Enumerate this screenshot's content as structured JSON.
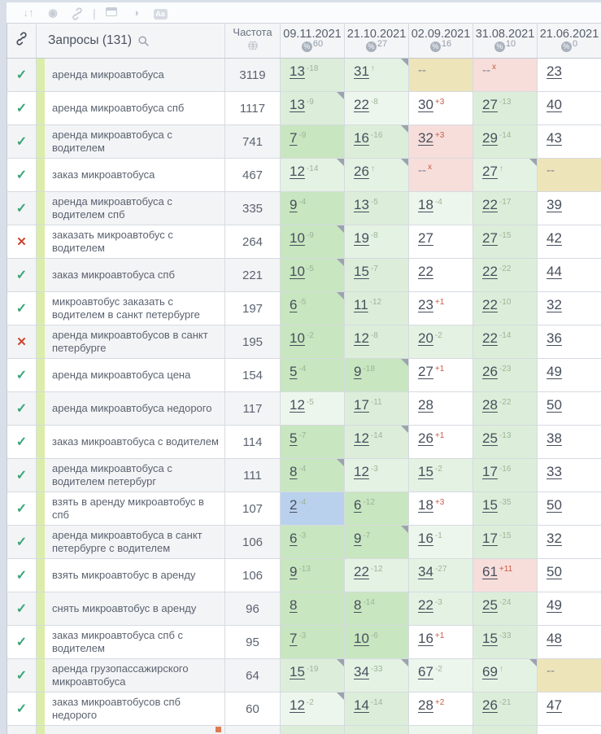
{
  "toolbar": {
    "icons": [
      "sort-icon",
      "record-icon",
      "link-icon",
      "divider",
      "window-icon",
      "contrast-icon",
      "font-case-icon"
    ]
  },
  "header": {
    "queries_label": "Запросы (131)",
    "frequency_label": "Частота",
    "dates": [
      {
        "date": "09.11.2021",
        "percent": "60"
      },
      {
        "date": "21.10.2021",
        "percent": "27"
      },
      {
        "date": "02.09.2021",
        "percent": "16"
      },
      {
        "date": "31.08.2021",
        "percent": "10"
      },
      {
        "date": "21.06.2021",
        "percent": "0"
      }
    ]
  },
  "colors": {
    "check_green": "#3aa678",
    "cross_red": "#cd4632",
    "query_strip": "#dcedaa",
    "change_up_green": "#9cb49a",
    "change_down_red": "#c75b42",
    "cell_top3_blue": "#b9d1ed",
    "cell_good_green": "#c8e6bf",
    "cell_dropped_pink": "#f7dedb",
    "cell_nodata_tan": "#eee4b9"
  },
  "rows": [
    {
      "status": "check",
      "query": "аренда микроавтобуса",
      "freq": "3119",
      "cells": [
        {
          "pos": "13",
          "chg": "-18",
          "bg": "g2"
        },
        {
          "pos": "31",
          "chg": "↑",
          "bg": "g3",
          "tri": true
        },
        {
          "pos": "--",
          "bg": "tan"
        },
        {
          "pos": "--",
          "chg": "x",
          "bg": "pink"
        },
        {
          "pos": "23",
          "bg": "white"
        }
      ]
    },
    {
      "status": "check",
      "query": "аренда микроавтобуса спб",
      "freq": "1117",
      "cells": [
        {
          "pos": "13",
          "chg": "-9",
          "bg": "g2",
          "tri": true
        },
        {
          "pos": "22",
          "chg": "-8",
          "bg": "g4"
        },
        {
          "pos": "30",
          "chg": "+3",
          "bg": "white"
        },
        {
          "pos": "27",
          "chg": "-13",
          "bg": "g2"
        },
        {
          "pos": "40",
          "bg": "white"
        }
      ]
    },
    {
      "status": "check",
      "query": "аренда микроавтобуса с водителем",
      "freq": "741",
      "cells": [
        {
          "pos": "7",
          "chg": "-9",
          "bg": "g1"
        },
        {
          "pos": "16",
          "chg": "-16",
          "bg": "g2",
          "tri": true
        },
        {
          "pos": "32",
          "chg": "+3",
          "bg": "pink"
        },
        {
          "pos": "29",
          "chg": "-14",
          "bg": "g2"
        },
        {
          "pos": "43",
          "bg": "white"
        }
      ]
    },
    {
      "status": "check",
      "query": "заказ микроавтобуса",
      "freq": "467",
      "cells": [
        {
          "pos": "12",
          "chg": "-14",
          "bg": "g3",
          "tri": true
        },
        {
          "pos": "26",
          "chg": "↑",
          "bg": "g3",
          "tri": true
        },
        {
          "pos": "--",
          "chg": "x",
          "bg": "pink"
        },
        {
          "pos": "27",
          "chg": "↑",
          "bg": "g3",
          "tri": true
        },
        {
          "pos": "--",
          "bg": "tan"
        }
      ]
    },
    {
      "status": "check",
      "query": "аренда микроавтобуса с водителем спб",
      "freq": "335",
      "cells": [
        {
          "pos": "9",
          "chg": "-4",
          "bg": "g1"
        },
        {
          "pos": "13",
          "chg": "-5",
          "bg": "g2"
        },
        {
          "pos": "18",
          "chg": "-4",
          "bg": "g4"
        },
        {
          "pos": "22",
          "chg": "-17",
          "bg": "g2"
        },
        {
          "pos": "39",
          "bg": "white"
        }
      ]
    },
    {
      "status": "cross",
      "query": "заказать микроавтобус с водителем",
      "freq": "264",
      "cells": [
        {
          "pos": "10",
          "chg": "-9",
          "bg": "g1",
          "tri": true
        },
        {
          "pos": "19",
          "chg": "-8",
          "bg": "g3"
        },
        {
          "pos": "27",
          "bg": "white"
        },
        {
          "pos": "27",
          "chg": "-15",
          "bg": "g2"
        },
        {
          "pos": "42",
          "bg": "white"
        }
      ]
    },
    {
      "status": "check",
      "query": "заказ микроавтобуса спб",
      "freq": "221",
      "cells": [
        {
          "pos": "10",
          "chg": "-5",
          "bg": "g1",
          "tri": true
        },
        {
          "pos": "15",
          "chg": "-7",
          "bg": "g2"
        },
        {
          "pos": "22",
          "bg": "white"
        },
        {
          "pos": "22",
          "chg": "-22",
          "bg": "g2"
        },
        {
          "pos": "44",
          "bg": "white"
        }
      ]
    },
    {
      "status": "check",
      "query": "микроавтобус заказать с водителем в санкт петербурге",
      "freq": "197",
      "cells": [
        {
          "pos": "6",
          "chg": "-5",
          "bg": "g1",
          "tri": true
        },
        {
          "pos": "11",
          "chg": "-12",
          "bg": "g2"
        },
        {
          "pos": "23",
          "chg": "+1",
          "bg": "white"
        },
        {
          "pos": "22",
          "chg": "-10",
          "bg": "g2"
        },
        {
          "pos": "32",
          "bg": "white"
        }
      ]
    },
    {
      "status": "cross",
      "query": "аренда микроавтобусов в санкт петербурге",
      "freq": "195",
      "cells": [
        {
          "pos": "10",
          "chg": "-2",
          "bg": "g1"
        },
        {
          "pos": "12",
          "chg": "-8",
          "bg": "g2"
        },
        {
          "pos": "20",
          "chg": "-2",
          "bg": "g3"
        },
        {
          "pos": "22",
          "chg": "-14",
          "bg": "g2"
        },
        {
          "pos": "36",
          "bg": "white"
        }
      ]
    },
    {
      "status": "check",
      "query": "аренда микроавтобуса цена",
      "freq": "154",
      "cells": [
        {
          "pos": "5",
          "chg": "-4",
          "bg": "g1"
        },
        {
          "pos": "9",
          "chg": "-18",
          "bg": "g1",
          "tri": true
        },
        {
          "pos": "27",
          "chg": "+1",
          "bg": "white"
        },
        {
          "pos": "26",
          "chg": "-23",
          "bg": "g2"
        },
        {
          "pos": "49",
          "bg": "white"
        }
      ]
    },
    {
      "status": "check",
      "query": "аренда микроавтобуса недорого",
      "freq": "117",
      "cells": [
        {
          "pos": "12",
          "chg": "-5",
          "bg": "g4"
        },
        {
          "pos": "17",
          "chg": "-11",
          "bg": "g2"
        },
        {
          "pos": "28",
          "bg": "white"
        },
        {
          "pos": "28",
          "chg": "-22",
          "bg": "g2"
        },
        {
          "pos": "50",
          "bg": "white"
        }
      ]
    },
    {
      "status": "check",
      "query": "заказ микроавтобуса с водителем",
      "freq": "114",
      "cells": [
        {
          "pos": "5",
          "chg": "-7",
          "bg": "g1"
        },
        {
          "pos": "12",
          "chg": "-14",
          "bg": "g2",
          "tri": true
        },
        {
          "pos": "26",
          "chg": "+1",
          "bg": "white"
        },
        {
          "pos": "25",
          "chg": "-13",
          "bg": "g2"
        },
        {
          "pos": "38",
          "bg": "white"
        }
      ]
    },
    {
      "status": "check",
      "query": "аренда микроавтобуса с водителем петербург",
      "freq": "111",
      "cells": [
        {
          "pos": "8",
          "chg": "-4",
          "bg": "g1",
          "tri": true
        },
        {
          "pos": "12",
          "chg": "-3",
          "bg": "g3"
        },
        {
          "pos": "15",
          "chg": "-2",
          "bg": "g3"
        },
        {
          "pos": "17",
          "chg": "-16",
          "bg": "g2"
        },
        {
          "pos": "33",
          "bg": "white"
        }
      ]
    },
    {
      "status": "check",
      "query": "взять в аренду микроавтобус в спб",
      "freq": "107",
      "cells": [
        {
          "pos": "2",
          "chg": "-4",
          "bg": "blue"
        },
        {
          "pos": "6",
          "chg": "-12",
          "bg": "g1"
        },
        {
          "pos": "18",
          "chg": "+3",
          "bg": "white"
        },
        {
          "pos": "15",
          "chg": "-35",
          "bg": "g2"
        },
        {
          "pos": "50",
          "bg": "white"
        }
      ]
    },
    {
      "status": "check",
      "query": "аренда микроавтобуса в санкт петербурге с водителем",
      "freq": "106",
      "cells": [
        {
          "pos": "6",
          "chg": "-3",
          "bg": "g1"
        },
        {
          "pos": "9",
          "chg": "-7",
          "bg": "g1",
          "tri": true
        },
        {
          "pos": "16",
          "chg": "-1",
          "bg": "g4"
        },
        {
          "pos": "17",
          "chg": "-15",
          "bg": "g2"
        },
        {
          "pos": "32",
          "bg": "white"
        }
      ]
    },
    {
      "status": "check",
      "query": "взять микроавтобус в аренду",
      "freq": "106",
      "cells": [
        {
          "pos": "9",
          "chg": "-13",
          "bg": "g1"
        },
        {
          "pos": "22",
          "chg": "-12",
          "bg": "g3"
        },
        {
          "pos": "34",
          "chg": "-27",
          "bg": "g3"
        },
        {
          "pos": "61",
          "chg": "+11",
          "bg": "pink"
        },
        {
          "pos": "50",
          "bg": "white"
        }
      ]
    },
    {
      "status": "check",
      "query": "снять микроавтобус в аренду",
      "freq": "96",
      "cells": [
        {
          "pos": "8",
          "bg": "g1"
        },
        {
          "pos": "8",
          "chg": "-14",
          "bg": "g1"
        },
        {
          "pos": "22",
          "chg": "-3",
          "bg": "g3"
        },
        {
          "pos": "25",
          "chg": "-24",
          "bg": "g2"
        },
        {
          "pos": "49",
          "bg": "white"
        }
      ]
    },
    {
      "status": "check",
      "query": "заказ микроавтобуса спб с водителем",
      "freq": "95",
      "cells": [
        {
          "pos": "7",
          "chg": "-3",
          "bg": "g1"
        },
        {
          "pos": "10",
          "chg": "-6",
          "bg": "g1"
        },
        {
          "pos": "16",
          "chg": "+1",
          "bg": "white"
        },
        {
          "pos": "15",
          "chg": "-33",
          "bg": "g2"
        },
        {
          "pos": "48",
          "bg": "white"
        }
      ]
    },
    {
      "status": "check",
      "query": "аренда грузопассажирского микроавтобуса",
      "freq": "64",
      "cells": [
        {
          "pos": "15",
          "chg": "-19",
          "bg": "g2",
          "tri": true
        },
        {
          "pos": "34",
          "chg": "-33",
          "bg": "g3",
          "tri": true
        },
        {
          "pos": "67",
          "chg": "-2",
          "bg": "g4"
        },
        {
          "pos": "69",
          "chg": "↑",
          "bg": "g3",
          "tri": true
        },
        {
          "pos": "--",
          "bg": "tan"
        }
      ]
    },
    {
      "status": "check",
      "query": "заказ микроавтобусов спб недорого",
      "freq": "60",
      "cells": [
        {
          "pos": "12",
          "chg": "-2",
          "bg": "g4",
          "tri": true
        },
        {
          "pos": "14",
          "chg": "-14",
          "bg": "g2"
        },
        {
          "pos": "28",
          "chg": "+2",
          "bg": "white"
        },
        {
          "pos": "26",
          "chg": "-21",
          "bg": "g2"
        },
        {
          "pos": "47",
          "bg": "white"
        }
      ]
    }
  ],
  "partial_row": {
    "cells": [
      "g2",
      "g2",
      "g4",
      "g2",
      "white"
    ],
    "marker": true
  }
}
